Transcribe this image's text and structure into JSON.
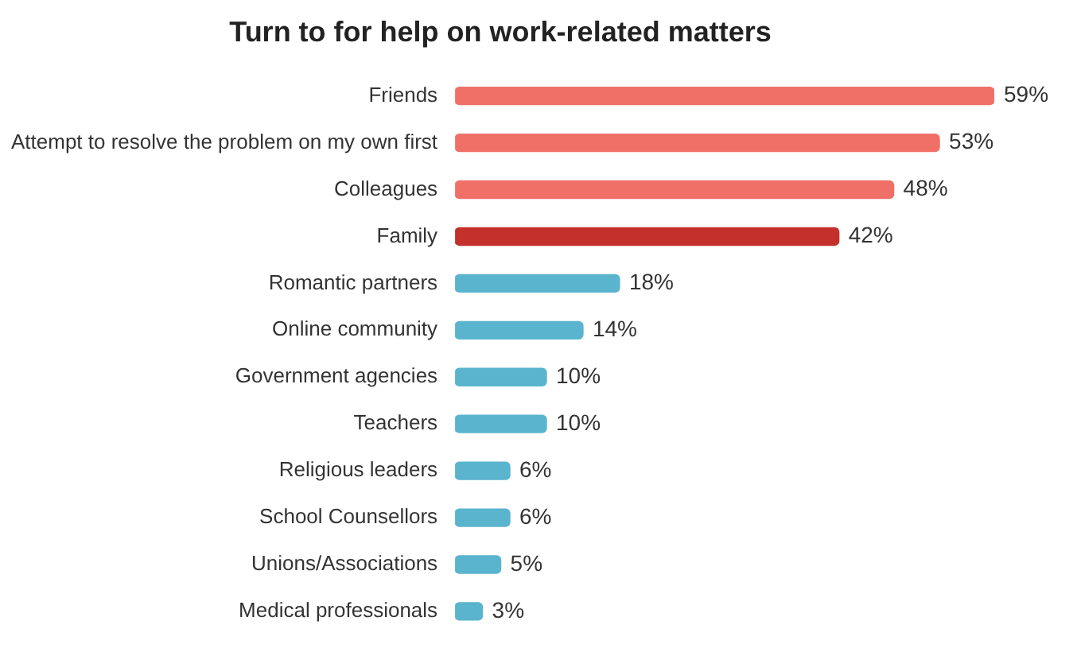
{
  "chart_data": {
    "type": "bar",
    "orientation": "horizontal",
    "title": "Turn to for help on work-related matters",
    "categories": [
      "Friends",
      "Attempt to resolve the problem on my own first",
      "Colleagues",
      "Family",
      "Romantic partners",
      "Online community",
      "Government agencies",
      "Teachers",
      "Religious leaders",
      "School Counsellors",
      "Unions/Associations",
      "Medical professionals"
    ],
    "values": [
      59,
      53,
      48,
      42,
      18,
      14,
      10,
      10,
      6,
      6,
      5,
      3
    ],
    "value_labels": [
      "59%",
      "53%",
      "48%",
      "42%",
      "18%",
      "14%",
      "10%",
      "10%",
      "6%",
      "6%",
      "5%",
      "3%"
    ],
    "colors": [
      "#f07068",
      "#f07068",
      "#f07068",
      "#c4302b",
      "#5ab4ce",
      "#5ab4ce",
      "#5ab4ce",
      "#5ab4ce",
      "#5ab4ce",
      "#5ab4ce",
      "#5ab4ce",
      "#5ab4ce"
    ],
    "legend": false
  }
}
